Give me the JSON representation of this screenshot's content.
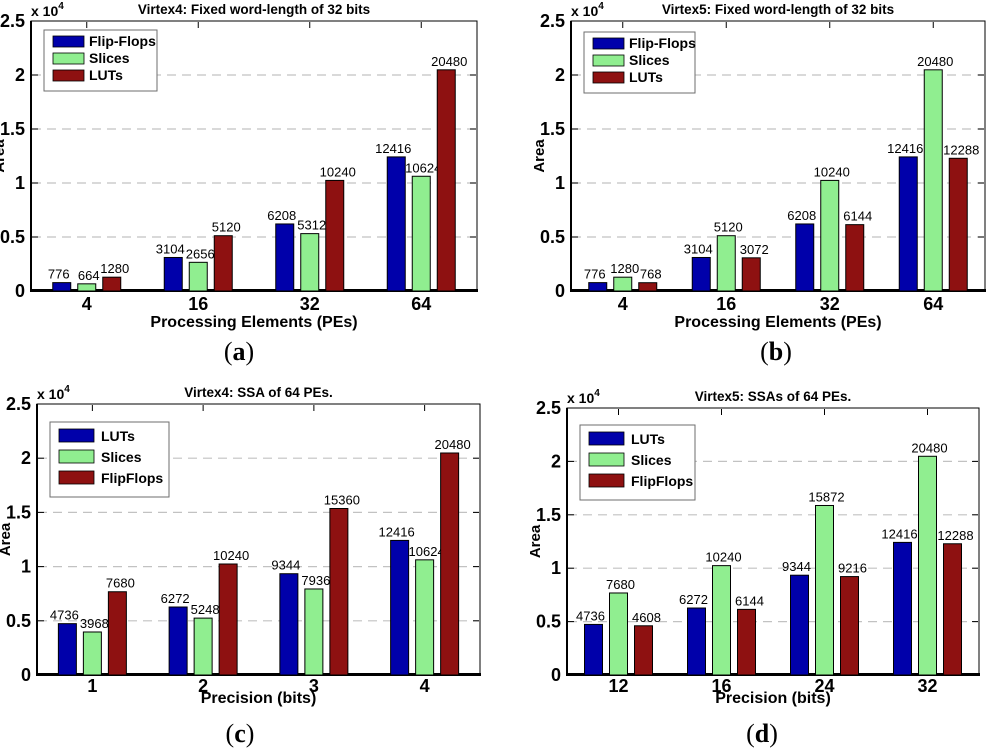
{
  "figure": {
    "background": "#ffffff",
    "axis_color": "#000000",
    "grid_color": "#c2c2c2",
    "value_label_color": "#1a1a1a",
    "legend_border_color": "#6e6e6e",
    "series_palette": {
      "blue": "#0000AA",
      "green": "#90EE90",
      "red": "#8E1111"
    }
  },
  "chart_data": [
    {
      "type": "bar",
      "title": "Virtex4: Fixed word-length of 32 bits",
      "caption": {
        "open": "(",
        "letter": "a",
        "close": ")"
      },
      "xlabel": "Processing Elements (PEs)",
      "ylabel": "Area",
      "y_multiplier": {
        "base": "x 10",
        "exp": "4"
      },
      "ylim": [
        0,
        25000
      ],
      "ytick_values": [
        0,
        5000,
        10000,
        15000,
        20000,
        25000
      ],
      "ytick_labels": [
        "0",
        "0.5",
        "1",
        "1.5",
        "2",
        "2.5"
      ],
      "grid": "dashed-horizontal",
      "legend_position": "top-left",
      "categories": [
        "4",
        "16",
        "32",
        "64"
      ],
      "series": [
        {
          "name": "Flip-Flops",
          "color": "blue",
          "values": [
            776,
            3104,
            6208,
            12416
          ]
        },
        {
          "name": "Slices",
          "color": "green",
          "values": [
            664,
            2656,
            5312,
            10624
          ]
        },
        {
          "name": "LUTs",
          "color": "red",
          "values": [
            1280,
            5120,
            10240,
            20480
          ]
        }
      ]
    },
    {
      "type": "bar",
      "title": "Virtex5: Fixed word-length of 32 bits",
      "caption": {
        "open": "(",
        "letter": "b",
        "close": ")"
      },
      "xlabel": "Processing Elements (PEs)",
      "ylabel": "Area",
      "y_multiplier": {
        "base": "x 10",
        "exp": "4"
      },
      "ylim": [
        0,
        25000
      ],
      "ytick_values": [
        0,
        5000,
        10000,
        15000,
        20000,
        25000
      ],
      "ytick_labels": [
        "0",
        "0.5",
        "1",
        "1.5",
        "2",
        "2.5"
      ],
      "grid": "dashed-horizontal",
      "legend_position": "top-left",
      "categories": [
        "4",
        "16",
        "32",
        "64"
      ],
      "series": [
        {
          "name": "Flip-Flops",
          "color": "blue",
          "values": [
            776,
            3104,
            6208,
            12416
          ]
        },
        {
          "name": "Slices",
          "color": "green",
          "values": [
            1280,
            5120,
            10240,
            20480
          ]
        },
        {
          "name": "LUTs",
          "color": "red",
          "values": [
            768,
            3072,
            6144,
            12288
          ]
        }
      ]
    },
    {
      "type": "bar",
      "title": "Virtex4: SSA of 64 PEs.",
      "caption": {
        "open": "(",
        "letter": "c",
        "close": ")"
      },
      "xlabel": "Precision (bits)",
      "ylabel": "Area",
      "y_multiplier": {
        "base": "x 10",
        "exp": "4"
      },
      "ylim": [
        0,
        25000
      ],
      "ytick_values": [
        0,
        5000,
        10000,
        15000,
        20000,
        25000
      ],
      "ytick_labels": [
        "0",
        "0.5",
        "1",
        "1.5",
        "2",
        "2.5"
      ],
      "grid": "dashed-horizontal",
      "legend_position": "top-left",
      "categories": [
        "1",
        "2",
        "3",
        "4"
      ],
      "series": [
        {
          "name": "LUTs",
          "color": "blue",
          "values": [
            4736,
            6272,
            9344,
            12416
          ]
        },
        {
          "name": "Slices",
          "color": "green",
          "values": [
            3968,
            5248,
            7936,
            10624
          ]
        },
        {
          "name": "FlipFlops",
          "color": "red",
          "values": [
            7680,
            10240,
            15360,
            20480
          ]
        }
      ]
    },
    {
      "type": "bar",
      "title": "Virtex5: SSAs of 64 PEs.",
      "caption": {
        "open": "(",
        "letter": "d",
        "close": ")"
      },
      "xlabel": "Precision (bits)",
      "ylabel": "Area",
      "y_multiplier": {
        "base": "x 10",
        "exp": "4"
      },
      "ylim": [
        0,
        25000
      ],
      "ytick_values": [
        0,
        5000,
        10000,
        15000,
        20000,
        25000
      ],
      "ytick_labels": [
        "0",
        "0.5",
        "1",
        "1.5",
        "2",
        "2.5"
      ],
      "grid": "dashed-horizontal",
      "legend_position": "top-left",
      "categories": [
        "12",
        "16",
        "24",
        "32"
      ],
      "series": [
        {
          "name": "LUTs",
          "color": "blue",
          "values": [
            4736,
            6272,
            9344,
            12416
          ]
        },
        {
          "name": "Slices",
          "color": "green",
          "values": [
            7680,
            10240,
            15872,
            20480
          ]
        },
        {
          "name": "FlipFlops",
          "color": "red",
          "values": [
            4608,
            6144,
            9216,
            12288
          ]
        }
      ]
    }
  ]
}
